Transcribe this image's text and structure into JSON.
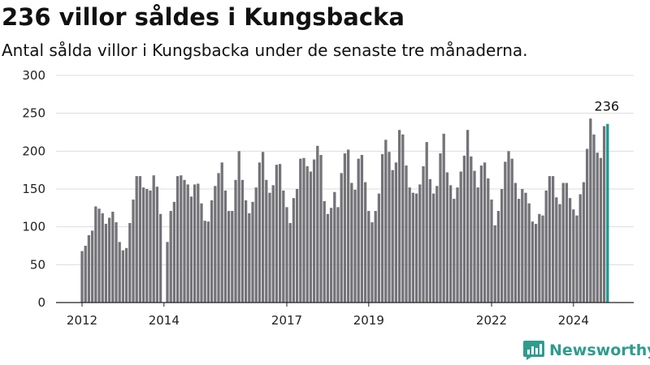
{
  "title": "236 villor såldes i Kungsbacka",
  "subtitle": "Antal sålda villor i Kungsbacka under de senaste tre månaderna.",
  "brand": {
    "name": "Newsworthy",
    "icon": "newsworthy-logo-icon",
    "color": "#2f9c8e"
  },
  "colors": {
    "bar": "#737378",
    "highlight": "#1a9a90",
    "grid": "#dddddd",
    "axis": "#222222"
  },
  "chart_data": {
    "type": "bar",
    "title": "236 villor såldes i Kungsbacka",
    "subtitle": "Antal sålda villor i Kungsbacka under de senaste tre månaderna.",
    "xlabel": "",
    "ylabel": "",
    "ylim": [
      0,
      300
    ],
    "yticks": [
      0,
      50,
      100,
      150,
      200,
      250,
      300
    ],
    "xticks": [
      {
        "label": "2012",
        "index": 0
      },
      {
        "label": "2014",
        "index": 24
      },
      {
        "label": "2017",
        "index": 60
      },
      {
        "label": "2019",
        "index": 84
      },
      {
        "label": "2022",
        "index": 120
      },
      {
        "label": "2024",
        "index": 144
      }
    ],
    "grid": true,
    "highlight_last": true,
    "last_value_label": "236",
    "values": [
      68,
      75,
      89,
      95,
      127,
      124,
      118,
      104,
      112,
      120,
      106,
      80,
      69,
      72,
      105,
      136,
      167,
      167,
      152,
      150,
      148,
      168,
      153,
      117,
      null,
      80,
      121,
      133,
      167,
      168,
      162,
      156,
      140,
      156,
      157,
      131,
      108,
      107,
      135,
      154,
      171,
      185,
      148,
      121,
      121,
      162,
      200,
      162,
      135,
      118,
      133,
      152,
      185,
      199,
      162,
      145,
      155,
      182,
      183,
      148,
      126,
      105,
      138,
      150,
      190,
      191,
      180,
      173,
      189,
      207,
      195,
      134,
      117,
      125,
      146,
      126,
      171,
      197,
      202,
      158,
      149,
      190,
      195,
      159,
      121,
      106,
      121,
      144,
      196,
      215,
      199,
      175,
      185,
      228,
      222,
      181,
      152,
      145,
      144,
      156,
      180,
      212,
      163,
      144,
      154,
      197,
      223,
      172,
      155,
      137,
      152,
      173,
      194,
      228,
      193,
      174,
      152,
      181,
      185,
      164,
      136,
      102,
      121,
      150,
      186,
      200,
      190,
      158,
      137,
      150,
      145,
      131,
      107,
      104,
      117,
      115,
      148,
      167,
      167,
      139,
      130,
      158,
      158,
      138,
      123,
      115,
      143,
      159,
      203,
      243,
      222,
      198,
      191,
      233,
      236
    ]
  }
}
